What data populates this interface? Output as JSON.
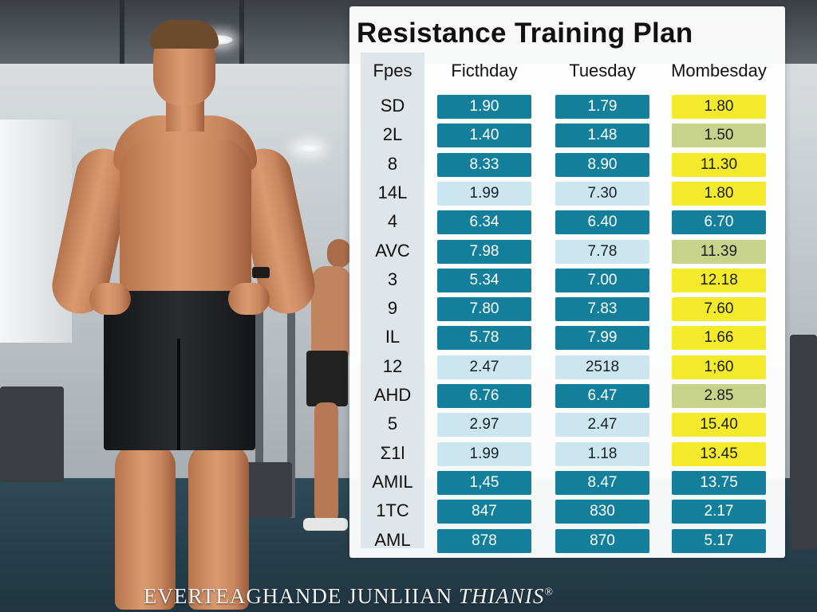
{
  "panel": {
    "title": "Resistance Training Plan",
    "headers": [
      "Fpes",
      "Ficthday",
      "Tuesday",
      "Mombesday"
    ]
  },
  "rows": [
    {
      "label": "SD",
      "cells": [
        {
          "v": "1.90",
          "s": "teal"
        },
        {
          "v": "1.79",
          "s": "teal"
        },
        {
          "v": "1.80",
          "s": "yellow"
        }
      ]
    },
    {
      "label": "2L",
      "cells": [
        {
          "v": "1.40",
          "s": "teal"
        },
        {
          "v": "1.48",
          "s": "teal"
        },
        {
          "v": "1.50",
          "s": "olive"
        }
      ]
    },
    {
      "label": "8",
      "cells": [
        {
          "v": "8.33",
          "s": "teal"
        },
        {
          "v": "8.90",
          "s": "teal"
        },
        {
          "v": "11.30",
          "s": "yellow"
        }
      ]
    },
    {
      "label": "14L",
      "cells": [
        {
          "v": "1.99",
          "s": "light"
        },
        {
          "v": "7.30",
          "s": "light"
        },
        {
          "v": "1.80",
          "s": "yellow"
        }
      ]
    },
    {
      "label": "4",
      "cells": [
        {
          "v": "6.34",
          "s": "teal"
        },
        {
          "v": "6.40",
          "s": "teal"
        },
        {
          "v": "6.70",
          "s": "teal"
        }
      ]
    },
    {
      "label": "AVC",
      "cells": [
        {
          "v": "7.98",
          "s": "teal"
        },
        {
          "v": "7.78",
          "s": "light"
        },
        {
          "v": "11.39",
          "s": "olive"
        }
      ]
    },
    {
      "label": "3",
      "cells": [
        {
          "v": "5.34",
          "s": "teal"
        },
        {
          "v": "7.00",
          "s": "teal"
        },
        {
          "v": "12.18",
          "s": "yellow"
        }
      ]
    },
    {
      "label": "9",
      "cells": [
        {
          "v": "7.80",
          "s": "teal"
        },
        {
          "v": "7.83",
          "s": "teal"
        },
        {
          "v": "7.60",
          "s": "yellow"
        }
      ]
    },
    {
      "label": "IL",
      "cells": [
        {
          "v": "5.78",
          "s": "teal"
        },
        {
          "v": "7.99",
          "s": "teal"
        },
        {
          "v": "1.66",
          "s": "yellow"
        }
      ]
    },
    {
      "label": "12",
      "cells": [
        {
          "v": "2.47",
          "s": "light"
        },
        {
          "v": "2518",
          "s": "light"
        },
        {
          "v": "1;60",
          "s": "yellow"
        }
      ]
    },
    {
      "label": "AHD",
      "cells": [
        {
          "v": "6.76",
          "s": "teal"
        },
        {
          "v": "6.47",
          "s": "teal"
        },
        {
          "v": "2.85",
          "s": "olive"
        }
      ]
    },
    {
      "label": "5",
      "cells": [
        {
          "v": "2.97",
          "s": "light"
        },
        {
          "v": "2.47",
          "s": "light"
        },
        {
          "v": "15.40",
          "s": "yellow"
        }
      ]
    },
    {
      "label": "Σ1l",
      "cells": [
        {
          "v": "1.99",
          "s": "light"
        },
        {
          "v": "1.18",
          "s": "light"
        },
        {
          "v": "13.45",
          "s": "yellow"
        }
      ]
    },
    {
      "label": "AMIL",
      "cells": [
        {
          "v": "1,45",
          "s": "teal"
        },
        {
          "v": "8.47",
          "s": "teal"
        },
        {
          "v": "13.75",
          "s": "teal"
        }
      ]
    },
    {
      "label": "1TC",
      "cells": [
        {
          "v": "847",
          "s": "teal"
        },
        {
          "v": "830",
          "s": "teal"
        },
        {
          "v": "2.17",
          "s": "teal"
        }
      ]
    },
    {
      "label": "AML",
      "cells": [
        {
          "v": "878",
          "s": "teal"
        },
        {
          "v": "870",
          "s": "teal"
        },
        {
          "v": "5.17",
          "s": "teal"
        }
      ]
    }
  ],
  "footer": {
    "text_a": "EVERTEAGHANDE JUNLIIAN ",
    "text_b": "THIANIS",
    "mark": "®"
  },
  "colors": {
    "teal": "#137f9a",
    "light": "#cbe6ee",
    "yellow": "#f2ea2a",
    "olive": "#c7d28a"
  }
}
